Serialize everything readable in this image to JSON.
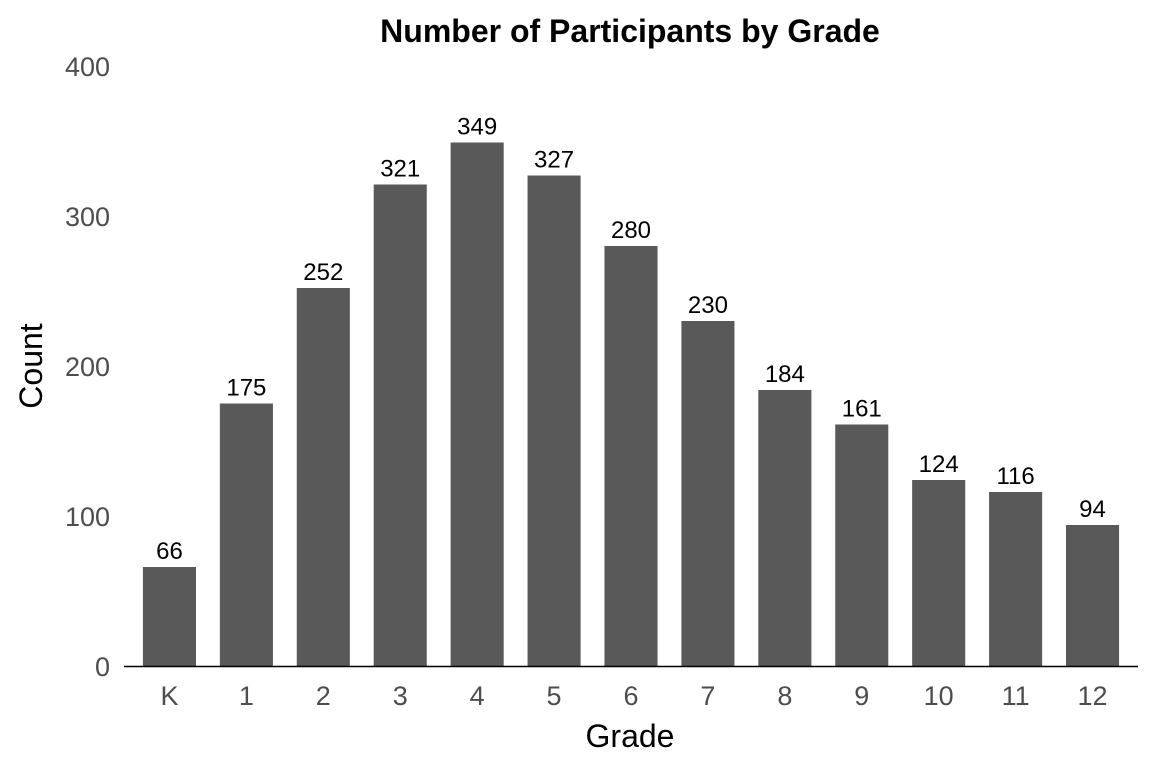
{
  "chart_data": {
    "type": "bar",
    "title": "Number of Participants by Grade",
    "xlabel": "Grade",
    "ylabel": "Count",
    "categories": [
      "K",
      "1",
      "2",
      "3",
      "4",
      "5",
      "6",
      "7",
      "8",
      "9",
      "10",
      "11",
      "12"
    ],
    "values": [
      66,
      175,
      252,
      321,
      349,
      327,
      280,
      230,
      184,
      161,
      124,
      116,
      94
    ],
    "ylim": [
      0,
      400
    ],
    "yticks": [
      0,
      100,
      200,
      300,
      400
    ],
    "grid": false,
    "legend": "none",
    "data_labels": true,
    "bar_color": "#595959"
  }
}
